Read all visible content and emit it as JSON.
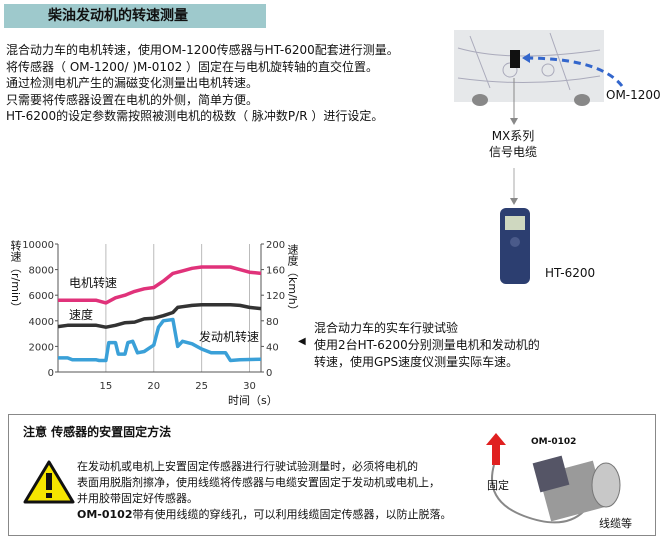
{
  "title": "柴油发动机的转速测量",
  "intro": [
    "混合动力车的电机转速，使用OM-1200传感器与HT-6200配套进行测量。",
    "将传感器（ OM-1200/ )M-0102 ）固定在与电机旋转轴的直交位置。",
    "通过检测电机产生的漏磁变化测量出电机转速。",
    "只需要将传感器设置在电机的外侧，简单方便。",
    "HT-6200的设定参数需按照被测电机的极数（ 脉冲数P/R ）进行设定。"
  ],
  "diagram": {
    "sensor": "OM-1200",
    "cable_line1": "MX系列",
    "cable_line2": "信号电缆",
    "device": "HT-6200",
    "arrow_color": "#3366cc"
  },
  "chart_caption": [
    "混合动力车的实车行驶试验",
    "使用2台HT-6200分别测量电机和发动机的",
    "转速，使用GPS速度仪测量实际车速。"
  ],
  "chart_data": {
    "type": "line",
    "xlabel": "时间（s）",
    "ylabel": "转速（r/min）",
    "y2label": "速度（km/h）",
    "xlim": [
      10,
      31.2
    ],
    "ylim": [
      0,
      10000
    ],
    "y2lim": [
      0,
      200
    ],
    "xticks": [
      15,
      20,
      25,
      30
    ],
    "yticks": [
      0,
      2000,
      4000,
      6000,
      8000,
      10000
    ],
    "y2ticks": [
      0,
      40,
      80,
      120,
      160,
      200
    ],
    "grid": "vertical",
    "series": [
      {
        "name": "电机转速",
        "axis": "left",
        "color": "#e0327a",
        "x": [
          10,
          14,
          15,
          16,
          17,
          18,
          19,
          20,
          21,
          22,
          23,
          24,
          25,
          27,
          28,
          29,
          30,
          31.2
        ],
        "y": [
          5600,
          5600,
          5400,
          5800,
          6000,
          6300,
          6500,
          6600,
          7100,
          7700,
          7900,
          8100,
          8200,
          8200,
          8200,
          8000,
          7800,
          7700
        ]
      },
      {
        "name": "速度",
        "axis": "right",
        "color": "#333333",
        "x": [
          10,
          11,
          14,
          15,
          16,
          17,
          18,
          19,
          20,
          21,
          22,
          22.5,
          23,
          24,
          25,
          28,
          29,
          30,
          31.2
        ],
        "y": [
          71,
          73,
          73,
          70,
          73,
          77,
          78,
          83,
          84,
          88,
          93,
          101,
          102,
          104,
          105,
          105,
          104,
          101,
          99
        ]
      },
      {
        "name": "发动机转速",
        "axis": "left",
        "color": "#3aa0d8",
        "x": [
          10,
          11,
          11.5,
          14,
          14.3,
          15,
          15.3,
          16,
          16.3,
          17,
          17.3,
          17.8,
          18.3,
          19,
          20,
          20.5,
          21,
          22,
          22.5,
          23,
          24,
          25,
          26,
          27.5,
          28,
          29,
          31.2
        ],
        "y": [
          1100,
          1100,
          950,
          950,
          900,
          900,
          2300,
          2300,
          1400,
          1400,
          2300,
          2400,
          1500,
          1600,
          2100,
          3500,
          4000,
          4100,
          2000,
          2400,
          2200,
          1800,
          1500,
          1500,
          900,
          950,
          1000
        ]
      }
    ]
  },
  "note": {
    "heading": "注意  传感器的安置固定方法",
    "lines": [
      "在发动机或电机上安置固定传感器进行行驶试验测量时，必须将电机的",
      "表面用脱脂剂擦净，使用线缆将传感器与电缆安置固定于发动机或电机上，",
      "并用胶带固定好传感器。"
    ],
    "last_bold": "OM-0102",
    "last_rest": "带有使用线缆的穿线孔，可以利用线缆固定传感器，以防止脱落。",
    "photo_sensor": "OM-0102",
    "photo_fix": "固定",
    "photo_cable": "线缆等"
  }
}
